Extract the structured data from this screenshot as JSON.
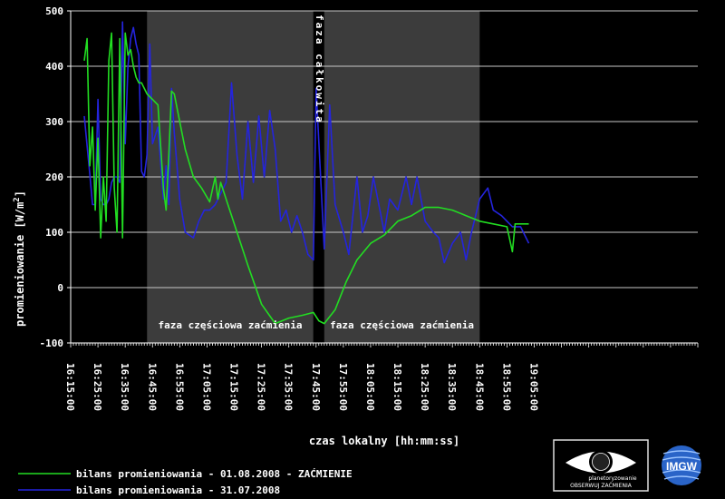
{
  "chart_data": {
    "type": "line",
    "ylabel": "promieniowanie [W/m",
    "ylabel_sup": "2",
    "ylabel_close": "]",
    "xlabel": "czas lokalny [hh:mm:ss]",
    "ylim": [
      -100,
      500
    ],
    "yticks": [
      -100,
      0,
      100,
      200,
      300,
      400,
      500
    ],
    "xlim_minutes": [
      0,
      230
    ],
    "xticks": [
      "16:15:00",
      "16:25:00",
      "16:35:00",
      "16:45:00",
      "16:55:00",
      "17:05:00",
      "17:15:00",
      "17:25:00",
      "17:35:00",
      "17:45:00",
      "17:55:00",
      "18:05:00",
      "18:15:00",
      "18:25:00",
      "18:35:00",
      "18:45:00",
      "18:55:00",
      "19:05:00"
    ],
    "grid": true,
    "legend_position": "bottom-left",
    "bands": [
      {
        "label": "faza częściowa zaćmienia",
        "start": "16:43:00",
        "end": "17:44:00"
      },
      {
        "label": "faza całkowita",
        "start": "17:44:00",
        "end": "17:48:00"
      },
      {
        "label": "faza częściowa zaćmienia",
        "start": "17:48:00",
        "end": "18:45:00"
      }
    ],
    "series": [
      {
        "name": "bilans promieniowania - 01.08.2008 - ZAĆMIENIE",
        "color": "#22dd22",
        "x": [
          "16:20:00",
          "16:21:00",
          "16:22:00",
          "16:23:00",
          "16:24:00",
          "16:25:00",
          "16:26:00",
          "16:27:00",
          "16:28:00",
          "16:29:00",
          "16:30:00",
          "16:31:00",
          "16:32:00",
          "16:33:00",
          "16:34:00",
          "16:35:00",
          "16:36:00",
          "16:37:00",
          "16:38:00",
          "16:39:00",
          "16:40:00",
          "16:41:00",
          "16:42:00",
          "16:43:00",
          "16:45:00",
          "16:47:00",
          "16:49:00",
          "16:50:00",
          "16:51:00",
          "16:52:00",
          "16:53:00",
          "16:55:00",
          "16:57:00",
          "17:00:00",
          "17:03:00",
          "17:06:00",
          "17:08:00",
          "17:09:00",
          "17:10:00",
          "17:15:00",
          "17:20:00",
          "17:25:00",
          "17:30:00",
          "17:35:00",
          "17:40:00",
          "17:44:00",
          "17:46:00",
          "17:48:00",
          "17:52:00",
          "17:56:00",
          "18:00:00",
          "18:05:00",
          "18:10:00",
          "18:15:00",
          "18:20:00",
          "18:25:00",
          "18:30:00",
          "18:35:00",
          "18:40:00",
          "18:45:00",
          "18:50:00",
          "18:55:00",
          "18:57:00",
          "18:58:00",
          "19:00:00",
          "19:03:00"
        ],
        "y": [
          410,
          450,
          220,
          290,
          140,
          270,
          90,
          200,
          120,
          410,
          460,
          180,
          100,
          450,
          90,
          460,
          420,
          430,
          400,
          380,
          370,
          370,
          360,
          350,
          340,
          330,
          180,
          140,
          240,
          355,
          350,
          300,
          250,
          200,
          180,
          155,
          200,
          160,
          190,
          115,
          40,
          -30,
          -65,
          -55,
          -50,
          -45,
          -60,
          -65,
          -40,
          10,
          50,
          80,
          95,
          120,
          130,
          145,
          145,
          140,
          130,
          120,
          115,
          110,
          65,
          115,
          115,
          115
        ]
      },
      {
        "name": "bilans promieniowania - 31.07.2008",
        "color": "#2424dd",
        "x": [
          "16:20:00",
          "16:22:00",
          "16:23:00",
          "16:24:00",
          "16:25:00",
          "16:26:00",
          "16:27:00",
          "16:28:00",
          "16:29:00",
          "16:30:00",
          "16:31:00",
          "16:32:00",
          "16:33:00",
          "16:34:00",
          "16:35:00",
          "16:36:00",
          "16:37:00",
          "16:38:00",
          "16:39:00",
          "16:40:00",
          "16:41:00",
          "16:42:00",
          "16:43:00",
          "16:44:00",
          "16:45:00",
          "16:47:00",
          "16:49:00",
          "16:50:00",
          "16:51:00",
          "16:52:00",
          "16:53:00",
          "16:55:00",
          "16:57:00",
          "17:00:00",
          "17:02:00",
          "17:04:00",
          "17:06:00",
          "17:08:00",
          "17:10:00",
          "17:12:00",
          "17:14:00",
          "17:16:00",
          "17:18:00",
          "17:20:00",
          "17:22:00",
          "17:24:00",
          "17:26:00",
          "17:28:00",
          "17:30:00",
          "17:32:00",
          "17:34:00",
          "17:36:00",
          "17:38:00",
          "17:40:00",
          "17:42:00",
          "17:44:00",
          "17:45:00",
          "17:48:00",
          "17:50:00",
          "17:52:00",
          "17:55:00",
          "17:57:00",
          "18:00:00",
          "18:02:00",
          "18:04:00",
          "18:06:00",
          "18:08:00",
          "18:10:00",
          "18:12:00",
          "18:15:00",
          "18:18:00",
          "18:20:00",
          "18:22:00",
          "18:25:00",
          "18:28:00",
          "18:30:00",
          "18:32:00",
          "18:35:00",
          "18:38:00",
          "18:40:00",
          "18:42:00",
          "18:45:00",
          "18:48:00",
          "18:50:00",
          "18:53:00",
          "18:55:00",
          "18:57:00",
          "19:00:00",
          "19:02:00",
          "19:03:00"
        ],
        "y": [
          310,
          205,
          150,
          150,
          340,
          160,
          150,
          150,
          160,
          190,
          200,
          200,
          190,
          480,
          260,
          400,
          450,
          470,
          440,
          420,
          210,
          200,
          240,
          440,
          260,
          290,
          160,
          220,
          150,
          360,
          280,
          160,
          100,
          90,
          120,
          140,
          140,
          150,
          170,
          190,
          370,
          240,
          160,
          300,
          190,
          310,
          200,
          320,
          250,
          120,
          140,
          100,
          130,
          100,
          60,
          50,
          360,
          70,
          330,
          150,
          100,
          60,
          200,
          100,
          130,
          200,
          150,
          100,
          160,
          140,
          200,
          150,
          200,
          120,
          100,
          90,
          45,
          80,
          100,
          50,
          100,
          160,
          180,
          140,
          130,
          120,
          110,
          110,
          90,
          80
        ]
      }
    ]
  },
  "logos": {
    "left_name": "OBSERWUJ ZAĆMIENIA",
    "left_small": "planetoryzowanie",
    "right_name": "IMGW"
  }
}
